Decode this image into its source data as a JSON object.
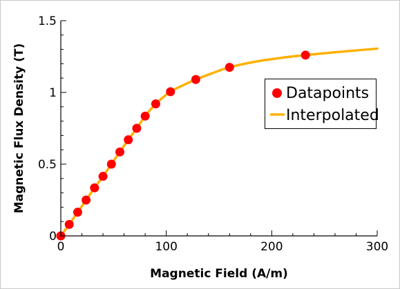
{
  "chart_data": {
    "type": "line",
    "title": "",
    "xlabel": "Magnetic Field (A/m)",
    "ylabel": "Magnetic Flux Density (T)",
    "xlim": [
      0,
      300
    ],
    "ylim": [
      0,
      1.5
    ],
    "xticks": [
      0,
      100,
      200,
      300
    ],
    "xtick_labels": [
      "0",
      "100",
      "200",
      "300"
    ],
    "yticks": [
      0,
      0.5,
      1,
      1.5
    ],
    "ytick_labels": [
      "0",
      "0.5",
      "1",
      "1.5"
    ],
    "grid": false,
    "legend_position": "center-right",
    "series": [
      {
        "name": "Datapoints",
        "kind": "scatter",
        "color": "#ff0000",
        "x": [
          0,
          8,
          16,
          24,
          32,
          40,
          48,
          56,
          64,
          72,
          80,
          90,
          104,
          128,
          160,
          232
        ],
        "y": [
          0,
          0.08,
          0.165,
          0.25,
          0.335,
          0.415,
          0.5,
          0.585,
          0.67,
          0.75,
          0.835,
          0.92,
          1.005,
          1.09,
          1.175,
          1.26
        ]
      },
      {
        "name": "Interpolated",
        "kind": "line",
        "color": "#ffb000",
        "x": [
          0,
          8,
          16,
          24,
          32,
          40,
          48,
          56,
          64,
          72,
          80,
          90,
          104,
          116,
          128,
          144,
          160,
          185,
          210,
          232,
          260,
          300
        ],
        "y": [
          0,
          0.08,
          0.165,
          0.25,
          0.335,
          0.415,
          0.5,
          0.585,
          0.67,
          0.75,
          0.835,
          0.92,
          1.005,
          1.05,
          1.09,
          1.135,
          1.175,
          1.215,
          1.242,
          1.26,
          1.28,
          1.305
        ]
      }
    ]
  }
}
